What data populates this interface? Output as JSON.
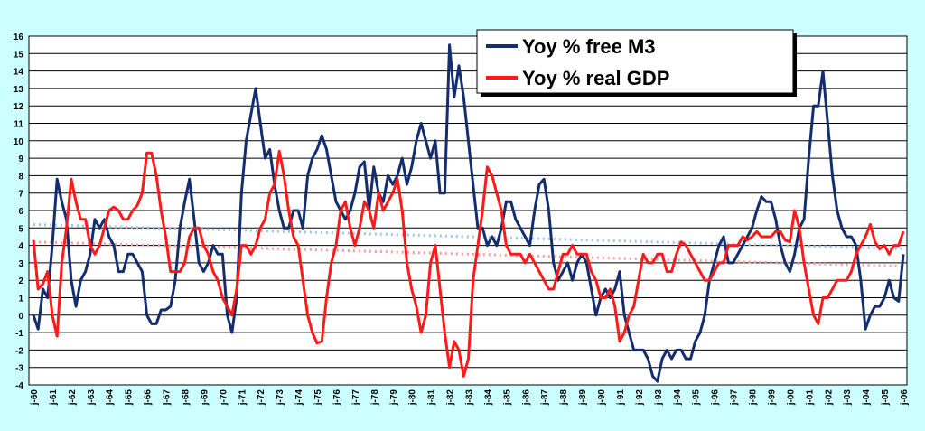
{
  "chart_data": {
    "type": "line",
    "categories": [
      "j-60",
      null,
      null,
      null,
      "j-61",
      null,
      null,
      null,
      "j-62",
      null,
      null,
      null,
      "j-63",
      null,
      null,
      null,
      "j-64",
      null,
      null,
      null,
      "j-65",
      null,
      null,
      null,
      "j-66",
      null,
      null,
      null,
      "j-67",
      null,
      null,
      null,
      "j-68",
      null,
      null,
      null,
      "j-69",
      null,
      null,
      null,
      "j-70",
      null,
      null,
      null,
      "j-71",
      null,
      null,
      null,
      "j-72",
      null,
      null,
      null,
      "j-73",
      null,
      null,
      null,
      "j-74",
      null,
      null,
      null,
      "j-75",
      null,
      null,
      null,
      "j-76",
      null,
      null,
      null,
      "j-77",
      null,
      null,
      null,
      "j-78",
      null,
      null,
      null,
      "j-79",
      null,
      null,
      null,
      "j-80",
      null,
      null,
      null,
      "j-81",
      null,
      null,
      null,
      "j-82",
      null,
      null,
      null,
      "j-83",
      null,
      null,
      null,
      "j-84",
      null,
      null,
      null,
      "j-85",
      null,
      null,
      null,
      "j-86",
      null,
      null,
      null,
      "j-87",
      null,
      null,
      null,
      "j-88",
      null,
      null,
      null,
      "j-89",
      null,
      null,
      null,
      "j-90",
      null,
      null,
      null,
      "j-91",
      null,
      null,
      null,
      "j-92",
      null,
      null,
      null,
      "j-93",
      null,
      null,
      null,
      "j-94",
      null,
      null,
      null,
      "j-95",
      null,
      null,
      null,
      "j-96",
      null,
      null,
      null,
      "j-97",
      null,
      null,
      null,
      "j-98",
      null,
      null,
      null,
      "j-99",
      null,
      null,
      null,
      "j-00",
      null,
      null,
      null,
      "j-01",
      null,
      null,
      null,
      "j-02",
      null,
      null,
      null,
      "j-03",
      null,
      null,
      null,
      "j-04",
      null,
      null,
      null,
      "j-05",
      null,
      null,
      null,
      "j-06"
    ],
    "series": [
      {
        "name": "Yoy % free M3",
        "color": "#142d6e",
        "values": [
          0,
          -0.8,
          1.5,
          1,
          4,
          7.8,
          6.5,
          5.5,
          2,
          0.5,
          2,
          2.5,
          3.5,
          5.5,
          5,
          5.5,
          4.5,
          4,
          2.5,
          2.5,
          3.5,
          3.5,
          3,
          2.5,
          0,
          -0.5,
          -0.5,
          0.3,
          0.3,
          0.5,
          2,
          5,
          6.5,
          7.8,
          5.5,
          3,
          2.5,
          3,
          4,
          3.5,
          3.5,
          0,
          -1,
          1,
          7,
          10,
          11.5,
          13,
          11,
          9,
          9.5,
          7.5,
          6,
          5,
          5,
          6,
          6,
          5,
          8,
          9,
          9.5,
          10.3,
          9.5,
          8,
          6.5,
          6,
          5.5,
          6,
          7,
          8.5,
          8.8,
          6,
          8.5,
          7,
          6.5,
          8,
          7.5,
          8,
          9,
          7.5,
          8.5,
          10,
          11,
          10,
          9,
          10,
          7,
          7,
          15.5,
          12.5,
          14.3,
          12.5,
          10,
          7.5,
          5,
          5,
          4,
          4.5,
          4,
          5,
          6.5,
          6.5,
          5.5,
          5,
          4.5,
          4,
          6,
          7.5,
          7.8,
          6,
          3,
          2,
          2.5,
          3,
          2,
          3,
          3.5,
          3,
          1.5,
          0,
          1,
          1.5,
          1,
          1.5,
          2.5,
          0,
          -1,
          -2,
          -2,
          -2,
          -2.5,
          -3.5,
          -3.8,
          -2.5,
          -2,
          -2.5,
          -2,
          -2,
          -2.5,
          -2.5,
          -1.5,
          -1,
          0,
          2,
          3,
          4,
          4.5,
          3,
          3,
          3.5,
          4,
          4.5,
          5,
          6,
          6.8,
          6.5,
          6.5,
          5.5,
          4,
          3,
          2.5,
          3.5,
          5,
          5.5,
          9,
          12,
          12,
          14,
          11,
          8,
          6,
          5,
          4.5,
          4.5,
          4,
          2,
          -0.8,
          0,
          0.5,
          0.5,
          1,
          2,
          1,
          0.8,
          3.5
        ]
      },
      {
        "name": "Yoy % real GDP",
        "color": "#ff1a1a",
        "values": [
          4.3,
          1.5,
          1.8,
          2.5,
          0,
          -1.2,
          3,
          5,
          7.8,
          6.5,
          5.5,
          5.5,
          4,
          3.5,
          4,
          5,
          6,
          6.2,
          6,
          5.5,
          5.5,
          6,
          6.3,
          7,
          9.3,
          9.3,
          8,
          6,
          4.5,
          2.5,
          2.5,
          2.5,
          3,
          4.5,
          5,
          5,
          4,
          3.5,
          2.5,
          2,
          1,
          0.5,
          0,
          1.5,
          4,
          4,
          3.5,
          4,
          5,
          5.5,
          7,
          7.5,
          9.4,
          8,
          6,
          4.5,
          4,
          2,
          0,
          -1,
          -1.6,
          -1.5,
          1,
          3,
          4,
          6,
          6.5,
          5,
          4,
          5,
          6.5,
          6,
          5,
          7,
          6,
          6.5,
          7,
          7.8,
          6,
          3,
          1.5,
          0.5,
          -1,
          0,
          3,
          4,
          1.5,
          -1,
          -3,
          -1.5,
          -2,
          -3.5,
          -2.5,
          2,
          4,
          6,
          8.5,
          8,
          7,
          6,
          4,
          3.5,
          3.5,
          3.5,
          3,
          3.5,
          3,
          2.5,
          2,
          1.5,
          1.5,
          2.5,
          3.5,
          3.5,
          4,
          3.5,
          3.5,
          3.5,
          2.5,
          2,
          1,
          1,
          1.5,
          0.5,
          -1.5,
          -1,
          0,
          0.5,
          2,
          3.5,
          3,
          3,
          3.5,
          3.5,
          2.5,
          2.5,
          3.5,
          4.2,
          4,
          3.5,
          3,
          2.5,
          2,
          2,
          2.5,
          3,
          3,
          4,
          4,
          4,
          4.5,
          4.3,
          4.5,
          4.8,
          4.5,
          4.5,
          4.5,
          4.8,
          4.8,
          4.3,
          4.2,
          6,
          5,
          3,
          1.5,
          0,
          -0.5,
          1,
          1,
          1.5,
          2,
          2,
          2,
          2.5,
          3.5,
          4,
          4.5,
          5.2,
          4.2,
          3.8,
          4,
          3.5,
          4,
          4,
          4.8
        ]
      }
    ],
    "trends": [
      {
        "color": "#9dc3e6",
        "values": [
          5.2,
          3.8
        ]
      },
      {
        "color": "#ff9a9a",
        "values": [
          4.2,
          2.8
        ]
      }
    ],
    "ylim": [
      -4,
      16
    ],
    "yticks": [
      -4,
      -3,
      -2,
      -1,
      0,
      1,
      2,
      3,
      4,
      5,
      6,
      7,
      8,
      9,
      10,
      11,
      12,
      13,
      14,
      15,
      16
    ],
    "grid": true,
    "legend": "top"
  }
}
